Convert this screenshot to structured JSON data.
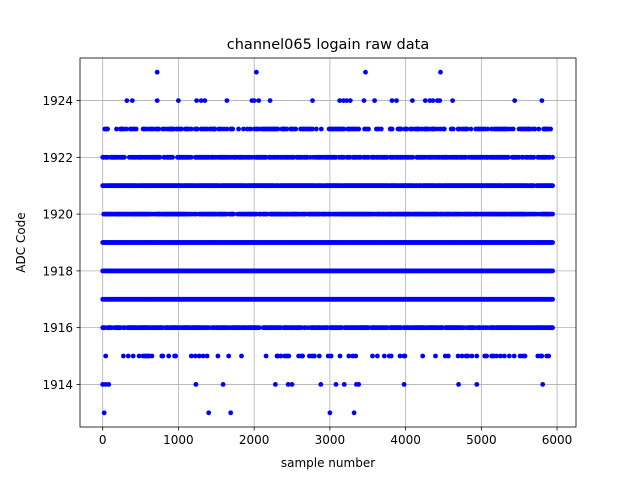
{
  "chart_data": {
    "type": "scatter",
    "title": "channel065 logain raw data",
    "xlabel": "sample number",
    "ylabel": "ADC Code",
    "xlim": [
      -300,
      6250
    ],
    "ylim": [
      1912.5,
      1925.5
    ],
    "xticks": [
      0,
      1000,
      2000,
      3000,
      4000,
      5000,
      6000
    ],
    "yticks": [
      1914,
      1916,
      1918,
      1920,
      1922,
      1924
    ],
    "grid": true,
    "marker_color": "#0000ff",
    "x_max": 5950,
    "levels": [
      {
        "y": 1917,
        "density": 1.0
      },
      {
        "y": 1918,
        "density": 1.0
      },
      {
        "y": 1919,
        "density": 1.0
      },
      {
        "y": 1921,
        "density": 0.95
      },
      {
        "y": 1920,
        "density": 0.85
      },
      {
        "y": 1916,
        "density": 0.8
      },
      {
        "y": 1922,
        "density": 0.75
      },
      {
        "y": 1923,
        "density": 0.45
      },
      {
        "y": 1915,
        "density": 0.2
      }
    ],
    "sparse_points": [
      {
        "x": 720,
        "y": 1925
      },
      {
        "x": 2030,
        "y": 1925
      },
      {
        "x": 3470,
        "y": 1925
      },
      {
        "x": 4460,
        "y": 1925
      },
      {
        "x": 320,
        "y": 1924
      },
      {
        "x": 390,
        "y": 1924
      },
      {
        "x": 720,
        "y": 1924
      },
      {
        "x": 1000,
        "y": 1924
      },
      {
        "x": 1240,
        "y": 1924
      },
      {
        "x": 1300,
        "y": 1924
      },
      {
        "x": 1350,
        "y": 1924
      },
      {
        "x": 1640,
        "y": 1924
      },
      {
        "x": 1970,
        "y": 1924
      },
      {
        "x": 2000,
        "y": 1924
      },
      {
        "x": 2060,
        "y": 1924
      },
      {
        "x": 2210,
        "y": 1924
      },
      {
        "x": 2770,
        "y": 1924
      },
      {
        "x": 3130,
        "y": 1924
      },
      {
        "x": 3180,
        "y": 1924
      },
      {
        "x": 3220,
        "y": 1924
      },
      {
        "x": 3270,
        "y": 1924
      },
      {
        "x": 3450,
        "y": 1924
      },
      {
        "x": 3590,
        "y": 1924
      },
      {
        "x": 3820,
        "y": 1924
      },
      {
        "x": 3880,
        "y": 1924
      },
      {
        "x": 4090,
        "y": 1924
      },
      {
        "x": 4260,
        "y": 1924
      },
      {
        "x": 4320,
        "y": 1924
      },
      {
        "x": 4360,
        "y": 1924
      },
      {
        "x": 4420,
        "y": 1924
      },
      {
        "x": 4450,
        "y": 1924
      },
      {
        "x": 4620,
        "y": 1924
      },
      {
        "x": 5440,
        "y": 1924
      },
      {
        "x": 5800,
        "y": 1924
      },
      {
        "x": 0,
        "y": 1914
      },
      {
        "x": 40,
        "y": 1914
      },
      {
        "x": 80,
        "y": 1914
      },
      {
        "x": 1230,
        "y": 1914
      },
      {
        "x": 1590,
        "y": 1914
      },
      {
        "x": 2280,
        "y": 1914
      },
      {
        "x": 2450,
        "y": 1914
      },
      {
        "x": 2500,
        "y": 1914
      },
      {
        "x": 2880,
        "y": 1914
      },
      {
        "x": 3080,
        "y": 1914
      },
      {
        "x": 3190,
        "y": 1914
      },
      {
        "x": 3350,
        "y": 1914
      },
      {
        "x": 3380,
        "y": 1914
      },
      {
        "x": 3980,
        "y": 1914
      },
      {
        "x": 4700,
        "y": 1914
      },
      {
        "x": 4940,
        "y": 1914
      },
      {
        "x": 5810,
        "y": 1914
      },
      {
        "x": 20,
        "y": 1913
      },
      {
        "x": 1400,
        "y": 1913
      },
      {
        "x": 1690,
        "y": 1913
      },
      {
        "x": 3000,
        "y": 1913
      },
      {
        "x": 3320,
        "y": 1913
      }
    ]
  }
}
